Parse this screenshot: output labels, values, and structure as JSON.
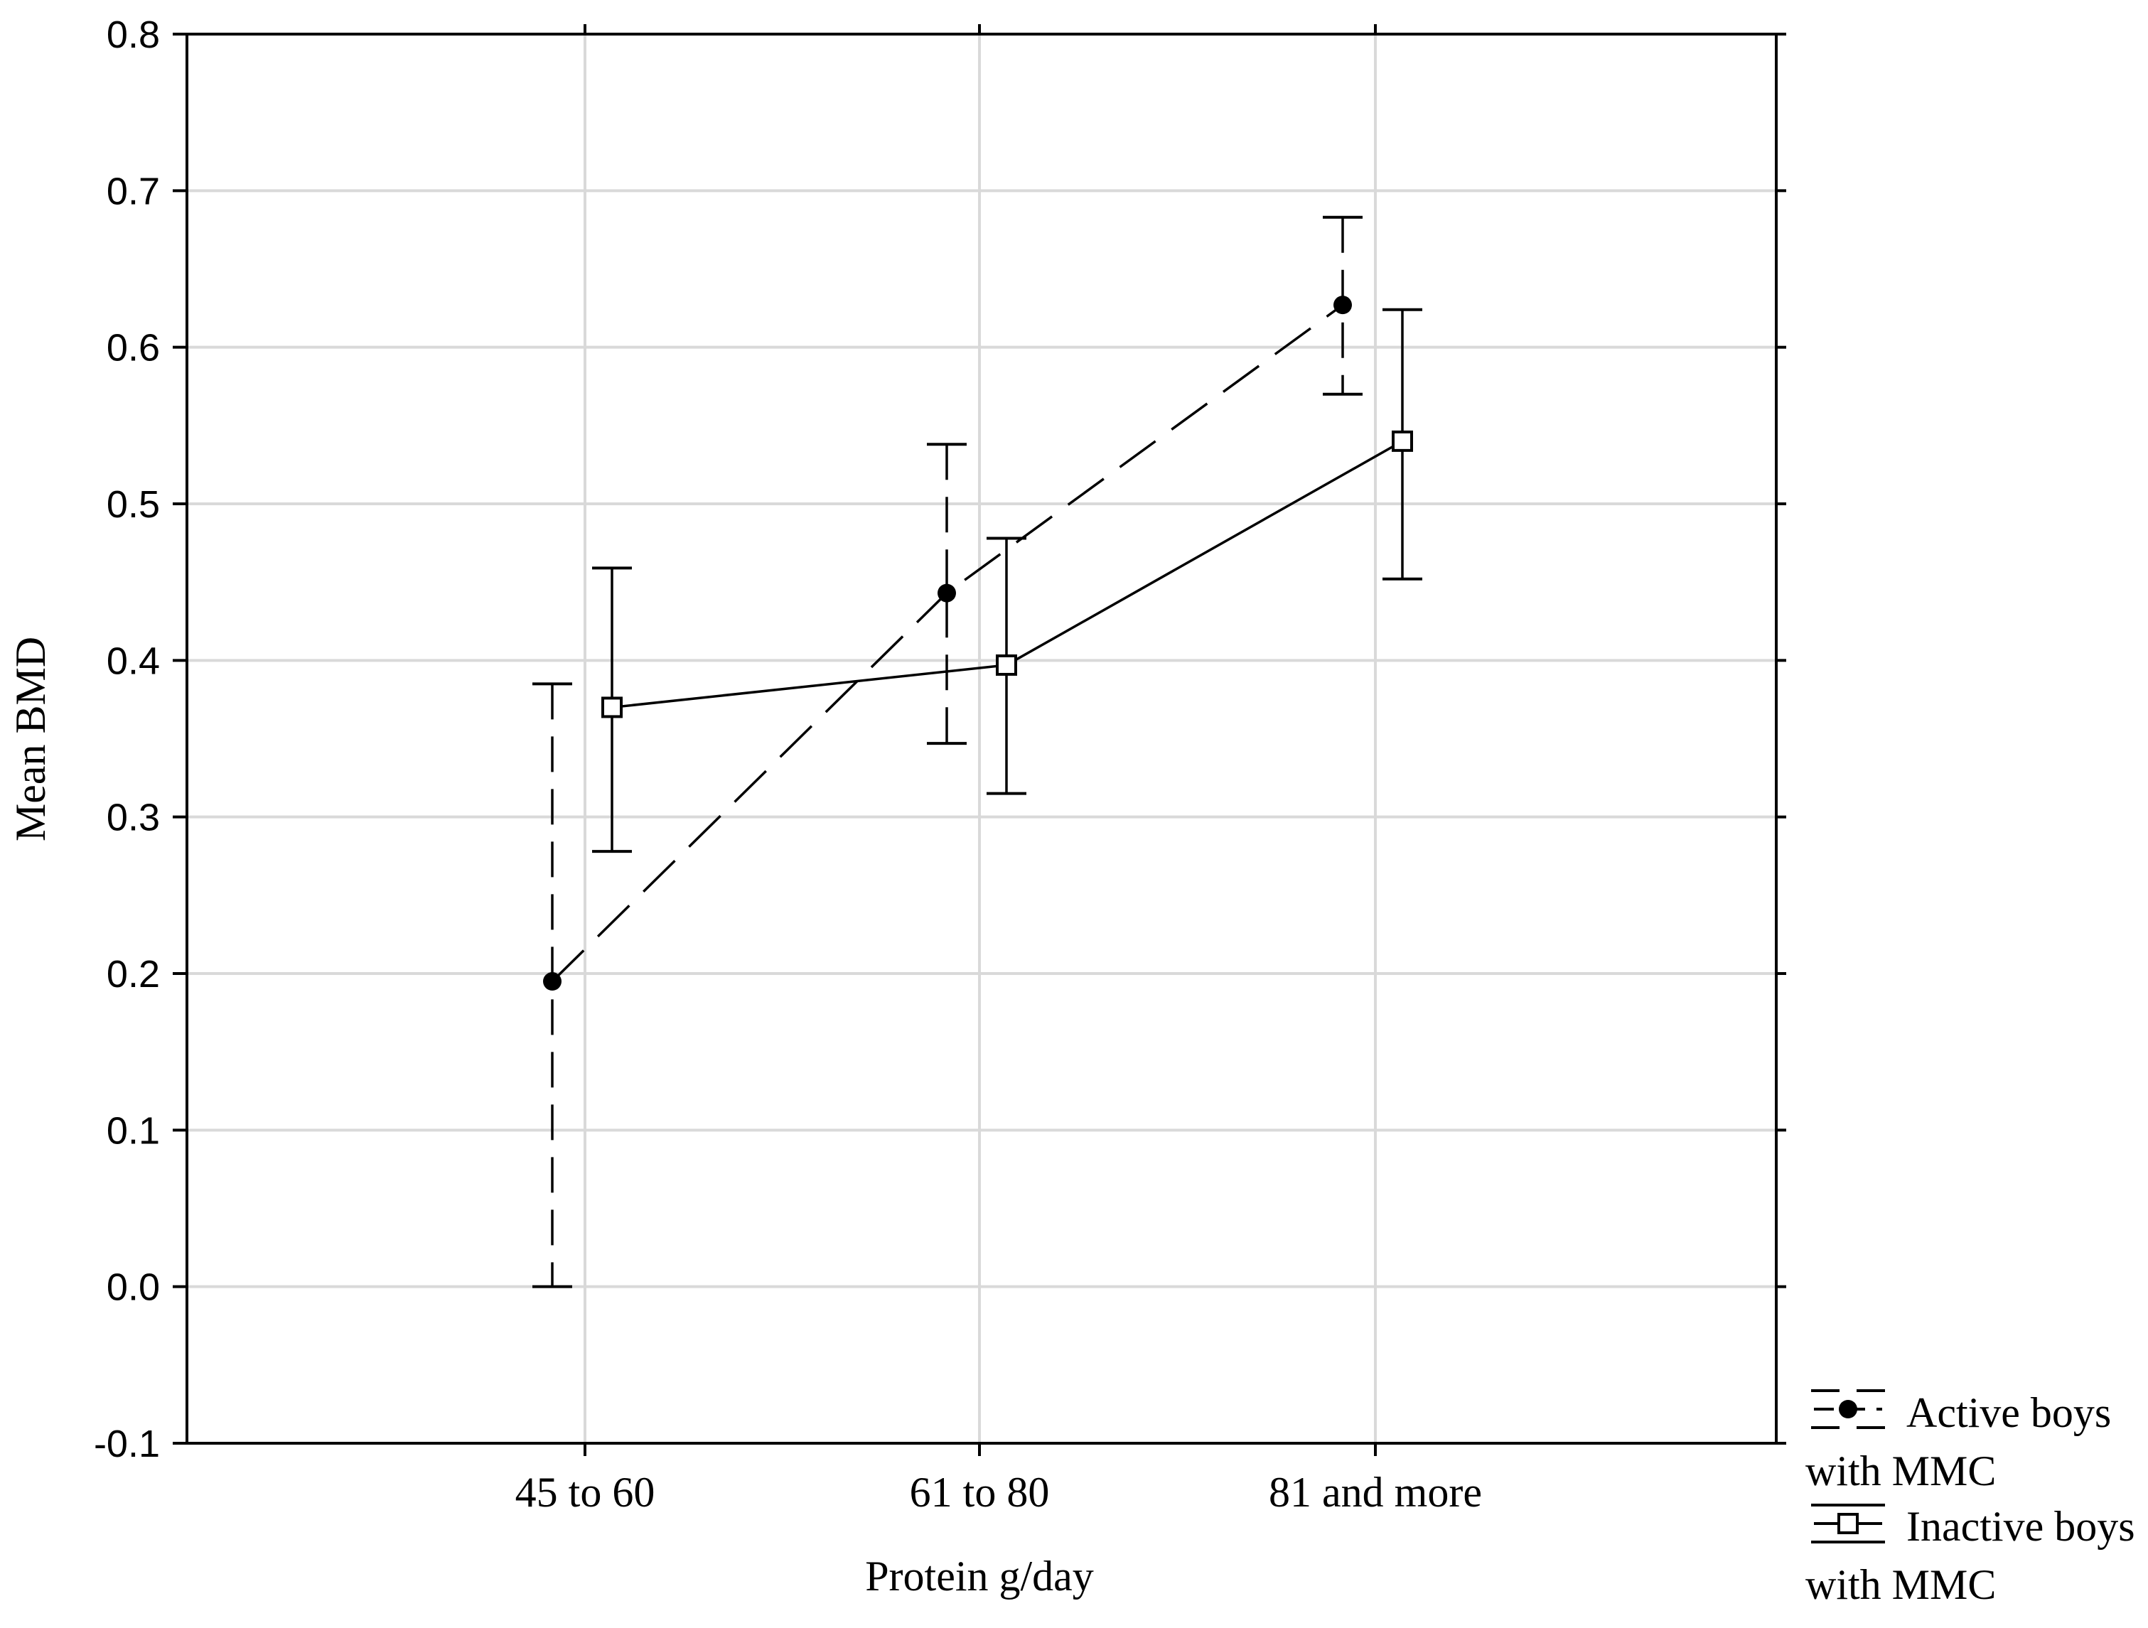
{
  "chart_data": {
    "type": "line",
    "title": "",
    "xlabel": "Protein g/day",
    "ylabel": "Mean BMD",
    "categories": [
      "45 to 60",
      "61 to 80",
      "81 and more"
    ],
    "ylim": [
      -0.1,
      0.8
    ],
    "yticks": [
      -0.1,
      0.0,
      0.1,
      0.2,
      0.3,
      0.4,
      0.5,
      0.6,
      0.7,
      0.8
    ],
    "ytick_labels": [
      "-0.1",
      "0.0",
      "0.1",
      "0.2",
      "0.3",
      "0.4",
      "0.5",
      "0.6",
      "0.7",
      "0.8"
    ],
    "grid": true,
    "legend_position": "bottom-right outside",
    "series": [
      {
        "name": "Active boys with MMC",
        "legend_lines": [
          "Active boys",
          "with MMC"
        ],
        "marker": "filled-circle",
        "line_style": "dashed",
        "values": [
          0.195,
          0.443,
          0.627
        ],
        "lower": [
          0.0,
          0.347,
          0.57
        ],
        "upper": [
          0.385,
          0.538,
          0.683
        ]
      },
      {
        "name": "Inactive boys with MMC",
        "legend_lines": [
          "Inactive boys",
          "with MMC"
        ],
        "marker": "open-square",
        "line_style": "solid",
        "values": [
          0.37,
          0.397,
          0.54
        ],
        "lower": [
          0.278,
          0.315,
          0.452
        ],
        "upper": [
          0.459,
          0.478,
          0.624
        ]
      }
    ]
  }
}
